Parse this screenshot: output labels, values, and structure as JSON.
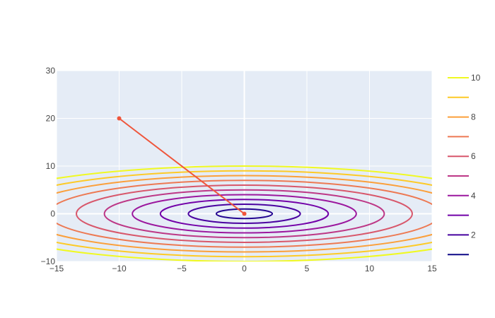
{
  "chart_data": {
    "type": "contour",
    "title": "",
    "xlabel": "",
    "ylabel": "",
    "xlim": [
      -15,
      15
    ],
    "ylim": [
      -10,
      30
    ],
    "x_ticks": [
      -15,
      -10,
      -5,
      0,
      5,
      10,
      15
    ],
    "y_ticks": [
      -10,
      0,
      10,
      20,
      30
    ],
    "grid": true,
    "plot_background": "#E5ECF6",
    "grid_color": "#ffffff",
    "contour": {
      "function": "sqrt(x^2/5 + y^2)",
      "levels": [
        1,
        2,
        3,
        4,
        5,
        6,
        7,
        8,
        9,
        10
      ],
      "colors": [
        "#240691",
        "#4a02a0",
        "#7201a8",
        "#9b179e",
        "#bd3786",
        "#d8576b",
        "#ed7953",
        "#fb9f3a",
        "#fdca26",
        "#f0f921"
      ],
      "colorscale": "Plasma"
    },
    "legend": {
      "placement": "right",
      "entries": [
        {
          "label": "10",
          "color": "#f0f921"
        },
        {
          "label": "",
          "color": "#fdca26"
        },
        {
          "label": "8",
          "color": "#fb9f3a"
        },
        {
          "label": "",
          "color": "#ed7953"
        },
        {
          "label": "6",
          "color": "#d8576b"
        },
        {
          "label": "",
          "color": "#bd3786"
        },
        {
          "label": "4",
          "color": "#9b179e"
        },
        {
          "label": "",
          "color": "#7201a8"
        },
        {
          "label": "2",
          "color": "#46039f"
        },
        {
          "label": "",
          "color": "#0d0887"
        }
      ]
    },
    "series": [
      {
        "type": "line+markers",
        "color": "#EF553B",
        "x": [
          -10,
          0
        ],
        "y": [
          20,
          0
        ]
      }
    ]
  }
}
